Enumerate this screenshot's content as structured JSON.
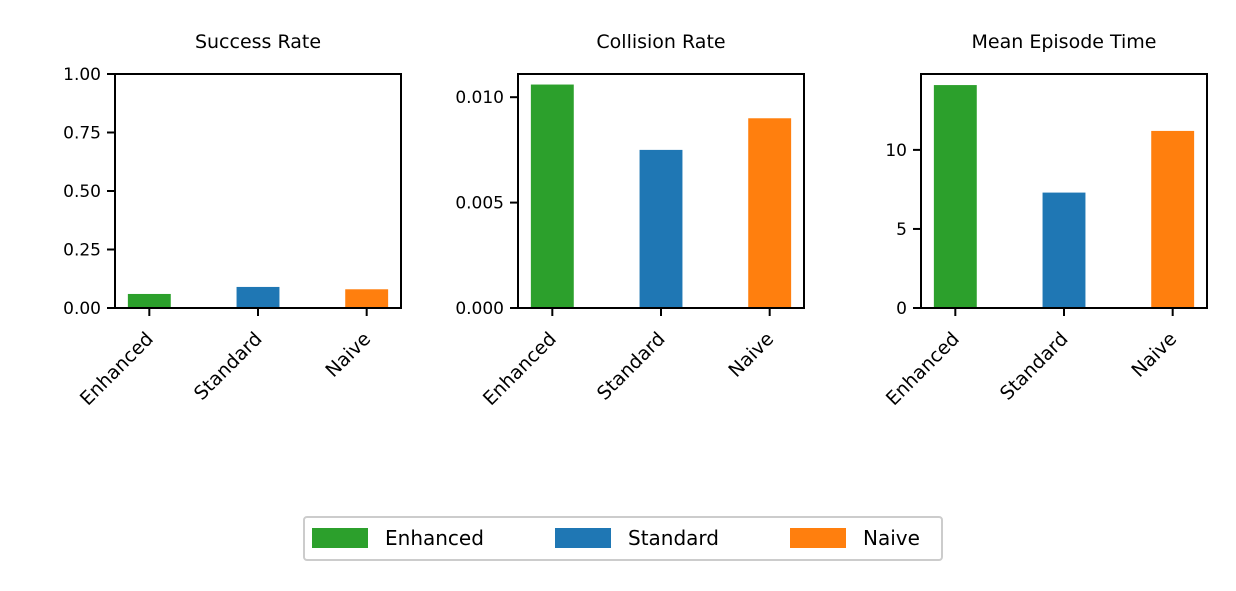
{
  "chart_data": [
    {
      "type": "bar",
      "title": "Success Rate",
      "categories": [
        "Enhanced",
        "Standard",
        "Naive"
      ],
      "values": [
        0.06,
        0.09,
        0.08
      ],
      "ylim": [
        0,
        1
      ],
      "yticks": [
        0,
        0.25,
        0.5,
        0.75,
        1
      ],
      "ytick_labels": [
        "0.00",
        "0.25",
        "0.50",
        "0.75",
        "1.00"
      ],
      "xlabel": "",
      "ylabel": "",
      "grid": false
    },
    {
      "type": "bar",
      "title": "Collision Rate",
      "categories": [
        "Enhanced",
        "Standard",
        "Naive"
      ],
      "values": [
        0.0106,
        0.0075,
        0.009
      ],
      "ylim": [
        0,
        0.0111
      ],
      "yticks": [
        0,
        0.005,
        0.01
      ],
      "ytick_labels": [
        "0.000",
        "0.005",
        "0.010"
      ],
      "xlabel": "",
      "ylabel": "",
      "grid": false
    },
    {
      "type": "bar",
      "title": "Mean Episode Time",
      "categories": [
        "Enhanced",
        "Standard",
        "Naive"
      ],
      "values": [
        14.1,
        7.3,
        11.2
      ],
      "ylim": [
        0,
        14.8
      ],
      "yticks": [
        0,
        5,
        10
      ],
      "ytick_labels": [
        "0",
        "5",
        "10"
      ],
      "xlabel": "",
      "ylabel": "",
      "grid": false
    }
  ],
  "legend": {
    "placement": "bottom-center",
    "entries": [
      {
        "label": "Enhanced",
        "color": "#2ca02c"
      },
      {
        "label": "Standard",
        "color": "#1f77b4"
      },
      {
        "label": "Naive",
        "color": "#ff7f0e"
      }
    ]
  },
  "colors": {
    "Enhanced": "#2ca02c",
    "Standard": "#1f77b4",
    "Naive": "#ff7f0e"
  }
}
